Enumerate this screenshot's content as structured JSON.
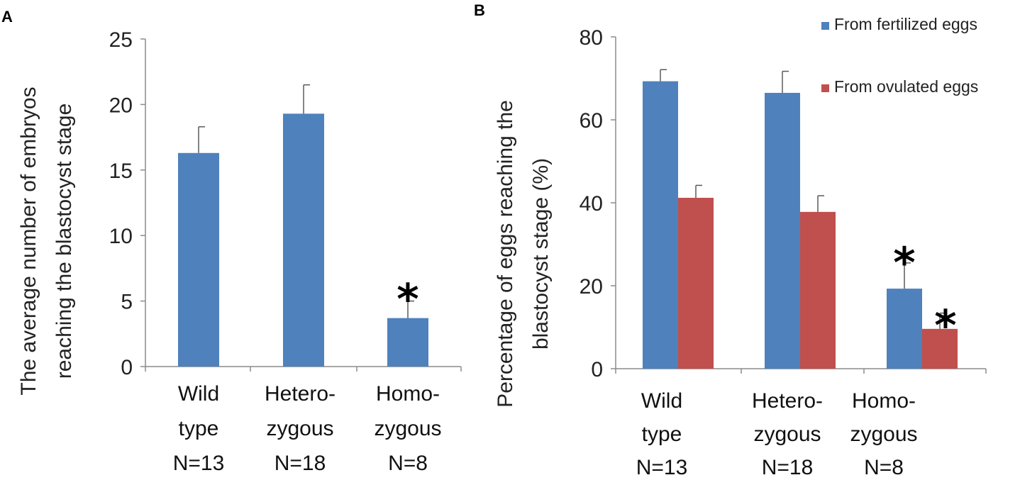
{
  "chart_data": [
    {
      "panel": "A",
      "type": "bar",
      "ylabel": [
        "The average number of  embryos",
        "reaching the blastocyst stage"
      ],
      "ylim": [
        0,
        25
      ],
      "yticks": [
        0,
        5,
        10,
        15,
        20,
        25
      ],
      "categories": [
        [
          "Wild",
          "type",
          "N=13"
        ],
        [
          "Hetero-",
          "zygous",
          "N=18"
        ],
        [
          "Homo-",
          "zygous",
          "N=8"
        ]
      ],
      "series": [
        {
          "name": "",
          "color": "#4f81bd",
          "values": [
            16.3,
            19.3,
            3.7
          ],
          "errors": [
            2.0,
            2.2,
            1.3
          ]
        }
      ],
      "annotations": [
        {
          "category_index": 2,
          "series_index": 0,
          "text": "*"
        }
      ]
    },
    {
      "panel": "B",
      "type": "bar",
      "ylabel": [
        "Percentage of eggs reaching the",
        "blastocyst stage (%)"
      ],
      "ylim": [
        0,
        80
      ],
      "yticks": [
        0,
        20,
        40,
        60,
        80
      ],
      "categories": [
        [
          "Wild",
          "type",
          "N=13"
        ],
        [
          "Hetero-",
          "zygous",
          "N=18"
        ],
        [
          "Homo-",
          "zygous",
          "N=8"
        ]
      ],
      "series": [
        {
          "name": "From fertilized  eggs",
          "color": "#4f81bd",
          "values": [
            69.3,
            66.5,
            19.3
          ],
          "errors": [
            2.8,
            5.2,
            6.2
          ]
        },
        {
          "name": "From ovulated eggs",
          "color": "#c0504d",
          "values": [
            41.2,
            37.8,
            9.6
          ],
          "errors": [
            3.0,
            3.9,
            3.8
          ]
        }
      ],
      "legend_position": "top-right",
      "annotations": [
        {
          "category_index": 2,
          "series_index": 0,
          "text": "*"
        },
        {
          "category_index": 2,
          "series_index": 1,
          "text": "*"
        }
      ]
    }
  ]
}
